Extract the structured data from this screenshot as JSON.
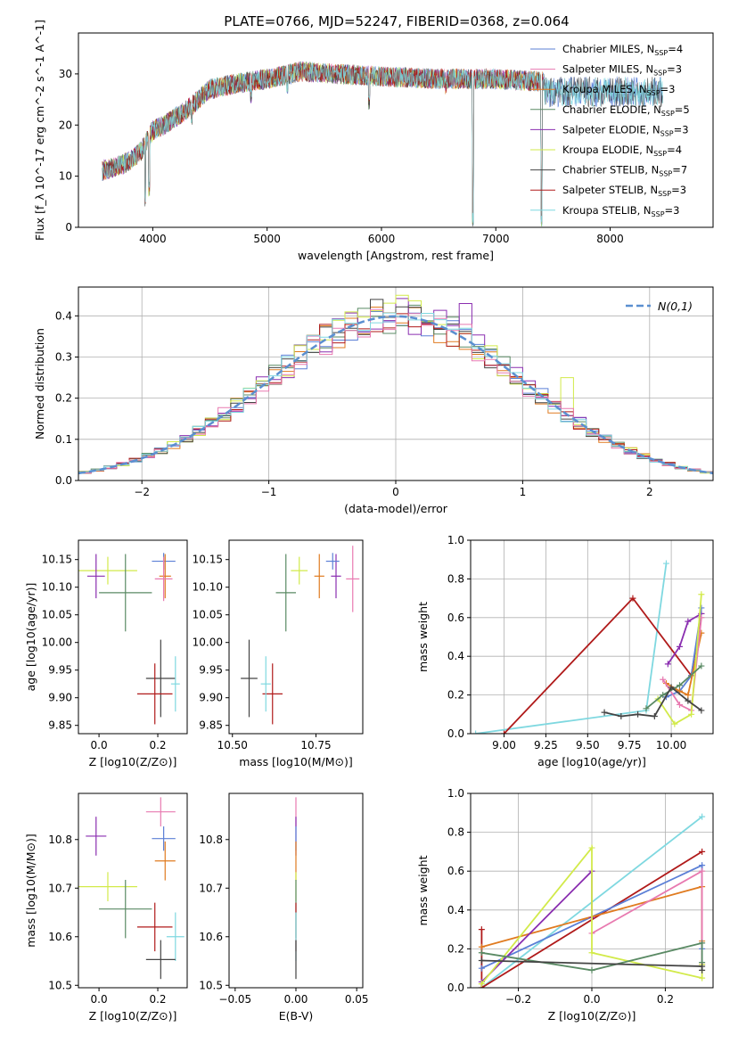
{
  "title": "PLATE=0766, MJD=52247, FIBERID=0368, z=0.064",
  "colors": {
    "blue": "#5b7fd6",
    "orange": "#e07b20",
    "green": "#5a8a64",
    "purple": "#8a2eb0",
    "yellowgreen": "#d2ea4a",
    "dark": "#444444",
    "red": "#b01a1a",
    "pink": "#e87ab0",
    "cyan": "#7fd8e0",
    "normal": "#5b8fd0",
    "grid": "#b0b0b0"
  },
  "chart_data": [
    {
      "id": "spectrum",
      "type": "line",
      "xlabel": "wavelength [Angstrom, rest frame]",
      "ylabel": "Flux [f_λ 10^-17 erg cm^-2 s^-1 A^-1]",
      "xlim": [
        3350,
        8900
      ],
      "ylim": [
        0,
        38
      ],
      "xticks": [
        4000,
        5000,
        6000,
        7000,
        8000
      ],
      "yticks": [
        0,
        10,
        20,
        30
      ],
      "grid": false,
      "legend_position": "upper-right",
      "series": [
        {
          "name": "Chabrier MILES, N_SSP=4",
          "color": "blue"
        },
        {
          "name": "Salpeter MILES, N_SSP=3",
          "color": "pink"
        },
        {
          "name": "Kroupa MILES, N_SSP=3",
          "color": "orange"
        },
        {
          "name": "Chabrier ELODIE, N_SSP=5",
          "color": "green"
        },
        {
          "name": "Salpeter ELODIE, N_SSP=3",
          "color": "purple"
        },
        {
          "name": "Kroupa ELODIE, N_SSP=4",
          "color": "yellowgreen"
        },
        {
          "name": "Chabrier STELIB, N_SSP=7",
          "color": "dark"
        },
        {
          "name": "Salpeter STELIB, N_SSP=3",
          "color": "red"
        },
        {
          "name": "Kroupa STELIB, N_SSP=3",
          "color": "cyan"
        }
      ],
      "continuum": {
        "x": [
          3550,
          3700,
          3800,
          3900,
          4000,
          4100,
          4300,
          4500,
          4700,
          5000,
          5300,
          5600,
          6000,
          6500,
          7000,
          7400
        ],
        "y": [
          11,
          12,
          13,
          15,
          19,
          20,
          23,
          27,
          28,
          29,
          30.5,
          30,
          29.5,
          29,
          29,
          28.5
        ]
      },
      "absorption": [
        {
          "x": 3934,
          "y": 4
        },
        {
          "x": 3969,
          "y": 6
        },
        {
          "x": 4340,
          "y": 20
        },
        {
          "x": 4861,
          "y": 24
        },
        {
          "x": 5175,
          "y": 26
        },
        {
          "x": 5893,
          "y": 23
        },
        {
          "x": 6563,
          "y": 26
        },
        {
          "x": 6800,
          "y": 0
        },
        {
          "x": 7400,
          "y": 0
        }
      ]
    },
    {
      "id": "residual-hist",
      "type": "histogram",
      "xlabel": "(data-model)/error",
      "ylabel": "Normed distribution",
      "xlim": [
        -2.5,
        2.5
      ],
      "ylim": [
        0,
        0.47
      ],
      "xticks": [
        -2,
        -1,
        0,
        1,
        2
      ],
      "yticks": [
        0.0,
        0.1,
        0.2,
        0.3,
        0.4
      ],
      "grid": true,
      "bin_width": 0.1,
      "legend": [
        {
          "name": "N(0,1)",
          "color": "normal"
        }
      ],
      "legend_position": "upper-right",
      "peak_values": [
        {
          "x": -0.45,
          "y": 0.37,
          "color": "pink"
        },
        {
          "x": -0.15,
          "y": 0.44,
          "color": "dark"
        },
        {
          "x": 0.05,
          "y": 0.45,
          "color": "yellowgreen"
        },
        {
          "x": 0.15,
          "y": 0.39,
          "color": "cyan"
        },
        {
          "x": 0.55,
          "y": 0.43,
          "color": "purple"
        },
        {
          "x": 1.35,
          "y": 0.25,
          "color": "yellowgreen"
        },
        {
          "x": -0.85,
          "y": 0.25,
          "color": "purple"
        }
      ]
    },
    {
      "id": "age-vs-Z",
      "type": "errorbar",
      "xlabel": "Z [log10(Z/Z⊙)]",
      "ylabel": "age  [log10(age/yr)]",
      "xlim": [
        -0.07,
        0.3
      ],
      "ylim": [
        9.835,
        10.185
      ],
      "xticks": [
        0.0,
        0.2
      ],
      "yticks": [
        9.85,
        9.9,
        9.95,
        10.0,
        10.05,
        10.1,
        10.15
      ],
      "points": [
        {
          "color": "yellowgreen",
          "x": 0.03,
          "y": 10.13,
          "xerr": 0.1,
          "yerr": 0.025
        },
        {
          "color": "purple",
          "x": -0.01,
          "y": 10.12,
          "xerr": 0.03,
          "yerr": 0.04
        },
        {
          "color": "green",
          "x": 0.09,
          "y": 10.09,
          "xerr": 0.09,
          "yerr": 0.07
        },
        {
          "color": "blue",
          "x": 0.22,
          "y": 10.147,
          "xerr": 0.04,
          "yerr": 0.015
        },
        {
          "color": "orange",
          "x": 0.225,
          "y": 10.12,
          "xerr": 0.02,
          "yerr": 0.04
        },
        {
          "color": "pink",
          "x": 0.22,
          "y": 10.115,
          "xerr": 0.03,
          "yerr": 0.04
        },
        {
          "color": "dark",
          "x": 0.21,
          "y": 9.935,
          "xerr": 0.05,
          "yerr": 0.07
        },
        {
          "color": "red",
          "x": 0.19,
          "y": 9.907,
          "xerr": 0.06,
          "yerr": 0.055
        },
        {
          "color": "cyan",
          "x": 0.26,
          "y": 9.925,
          "xerr": 0.015,
          "yerr": 0.05
        }
      ]
    },
    {
      "id": "age-vs-mass",
      "type": "errorbar",
      "xlabel": "mass [log10(M/M⊙)]",
      "ylabel": "",
      "xlim": [
        10.49,
        10.89
      ],
      "ylim": [
        9.835,
        10.185
      ],
      "xticks": [
        10.5,
        10.75
      ],
      "yticks": [
        9.85,
        9.9,
        9.95,
        10.0,
        10.05,
        10.1,
        10.15
      ],
      "points": [
        {
          "color": "yellowgreen",
          "x": 10.7,
          "y": 10.13,
          "xerr": 0.025,
          "yerr": 0.025
        },
        {
          "color": "purple",
          "x": 10.81,
          "y": 10.12,
          "xerr": 0.015,
          "yerr": 0.04
        },
        {
          "color": "green",
          "x": 10.66,
          "y": 10.09,
          "xerr": 0.03,
          "yerr": 0.07
        },
        {
          "color": "blue",
          "x": 10.8,
          "y": 10.147,
          "xerr": 0.02,
          "yerr": 0.015
        },
        {
          "color": "orange",
          "x": 10.76,
          "y": 10.12,
          "xerr": 0.015,
          "yerr": 0.04
        },
        {
          "color": "pink",
          "x": 10.86,
          "y": 10.115,
          "xerr": 0.02,
          "yerr": 0.06
        },
        {
          "color": "dark",
          "x": 10.55,
          "y": 9.935,
          "xerr": 0.025,
          "yerr": 0.07
        },
        {
          "color": "red",
          "x": 10.62,
          "y": 9.907,
          "xerr": 0.03,
          "yerr": 0.055
        },
        {
          "color": "cyan",
          "x": 10.6,
          "y": 9.925,
          "xerr": 0.015,
          "yerr": 0.05
        }
      ]
    },
    {
      "id": "mass-weight-vs-age",
      "type": "line",
      "xlabel": "age  [log10(age/yr)]",
      "ylabel": "mass weight",
      "xlim": [
        8.8,
        10.25
      ],
      "ylim": [
        0,
        1.0
      ],
      "xticks": [
        9.0,
        9.25,
        9.5,
        9.75,
        10.0
      ],
      "yticks": [
        0.0,
        0.2,
        0.4,
        0.6,
        0.8,
        1.0
      ],
      "grid": true,
      "series": [
        {
          "color": "cyan",
          "x": [
            8.83,
            9.85,
            9.97
          ],
          "y": [
            0.0,
            0.12,
            0.88
          ]
        },
        {
          "color": "red",
          "x": [
            9.0,
            9.77,
            10.12,
            10.18
          ],
          "y": [
            0.0,
            0.7,
            0.3,
            0.62
          ]
        },
        {
          "color": "purple",
          "x": [
            9.98,
            10.05,
            10.1,
            10.18
          ],
          "y": [
            0.36,
            0.45,
            0.58,
            0.62
          ]
        },
        {
          "color": "blue",
          "x": [
            9.97,
            10.05,
            10.12,
            10.18
          ],
          "y": [
            0.19,
            0.22,
            0.3,
            0.65
          ]
        },
        {
          "color": "orange",
          "x": [
            9.97,
            10.05,
            10.1,
            10.18
          ],
          "y": [
            0.26,
            0.22,
            0.2,
            0.52
          ]
        },
        {
          "color": "pink",
          "x": [
            9.95,
            10.05,
            10.12,
            10.18
          ],
          "y": [
            0.28,
            0.15,
            0.12,
            0.6
          ]
        },
        {
          "color": "yellowgreen",
          "x": [
            9.92,
            10.02,
            10.12,
            10.18
          ],
          "y": [
            0.18,
            0.05,
            0.1,
            0.72
          ]
        },
        {
          "color": "green",
          "x": [
            9.85,
            9.95,
            10.05,
            10.18
          ],
          "y": [
            0.13,
            0.2,
            0.25,
            0.35
          ]
        },
        {
          "color": "dark",
          "x": [
            9.6,
            9.7,
            9.8,
            9.9,
            10.0,
            10.1,
            10.18
          ],
          "y": [
            0.11,
            0.09,
            0.1,
            0.09,
            0.24,
            0.17,
            0.12
          ]
        }
      ]
    },
    {
      "id": "mass-vs-Z",
      "type": "errorbar",
      "xlabel": "Z [log10(Z/Z⊙)]",
      "ylabel": "mass [log10(M/M⊙)]",
      "xlim": [
        -0.07,
        0.3
      ],
      "ylim": [
        10.495,
        10.895
      ],
      "xticks": [
        0.0,
        0.2
      ],
      "yticks": [
        10.5,
        10.6,
        10.7,
        10.8
      ],
      "points": [
        {
          "color": "pink",
          "x": 0.21,
          "y": 10.857,
          "xerr": 0.05,
          "yerr": 0.03
        },
        {
          "color": "purple",
          "x": -0.01,
          "y": 10.807,
          "xerr": 0.035,
          "yerr": 0.04
        },
        {
          "color": "blue",
          "x": 0.22,
          "y": 10.802,
          "xerr": 0.04,
          "yerr": 0.025
        },
        {
          "color": "orange",
          "x": 0.225,
          "y": 10.756,
          "xerr": 0.035,
          "yerr": 0.04
        },
        {
          "color": "yellowgreen",
          "x": 0.03,
          "y": 10.703,
          "xerr": 0.1,
          "yerr": 0.03
        },
        {
          "color": "green",
          "x": 0.09,
          "y": 10.657,
          "xerr": 0.09,
          "yerr": 0.06
        },
        {
          "color": "red",
          "x": 0.19,
          "y": 10.62,
          "xerr": 0.06,
          "yerr": 0.05
        },
        {
          "color": "cyan",
          "x": 0.26,
          "y": 10.6,
          "xerr": 0.03,
          "yerr": 0.05
        },
        {
          "color": "dark",
          "x": 0.21,
          "y": 10.553,
          "xerr": 0.05,
          "yerr": 0.04
        }
      ]
    },
    {
      "id": "mass-vs-EBV",
      "type": "errorbar",
      "xlabel": "E(B-V)",
      "ylabel": "",
      "xlim": [
        -0.055,
        0.055
      ],
      "ylim": [
        10.495,
        10.895
      ],
      "xticks": [
        -0.05,
        0.0,
        0.05
      ],
      "yticks": [
        10.5,
        10.6,
        10.7,
        10.8
      ],
      "points": [
        {
          "color": "pink",
          "x": 0.0,
          "y": 10.857,
          "xerr": 0,
          "yerr": 0.03
        },
        {
          "color": "purple",
          "x": 0.0,
          "y": 10.807,
          "xerr": 0,
          "yerr": 0.04
        },
        {
          "color": "blue",
          "x": 0.0,
          "y": 10.802,
          "xerr": 0,
          "yerr": 0.025
        },
        {
          "color": "orange",
          "x": 0.0,
          "y": 10.756,
          "xerr": 0,
          "yerr": 0.04
        },
        {
          "color": "yellowgreen",
          "x": 0.0,
          "y": 10.703,
          "xerr": 0,
          "yerr": 0.03
        },
        {
          "color": "green",
          "x": 0.0,
          "y": 10.657,
          "xerr": 0,
          "yerr": 0.06
        },
        {
          "color": "red",
          "x": 0.0,
          "y": 10.62,
          "xerr": 0,
          "yerr": 0.05
        },
        {
          "color": "cyan",
          "x": 0.0,
          "y": 10.6,
          "xerr": 0,
          "yerr": 0.05
        },
        {
          "color": "dark",
          "x": 0.0,
          "y": 10.553,
          "xerr": 0,
          "yerr": 0.04
        }
      ]
    },
    {
      "id": "mass-weight-vs-Z",
      "type": "line",
      "xlabel": "Z [log10(Z/Z⊙)]",
      "ylabel": "mass weight",
      "xlim": [
        -0.33,
        0.33
      ],
      "ylim": [
        0,
        1.0
      ],
      "xticks": [
        -0.2,
        0.0,
        0.2
      ],
      "yticks": [
        0.0,
        0.2,
        0.4,
        0.6,
        0.8,
        1.0
      ],
      "grid": true,
      "series": [
        {
          "color": "cyan",
          "x": [
            -0.3,
            0.3
          ],
          "y": [
            0.0,
            0.88
          ]
        },
        {
          "color": "red",
          "x": [
            -0.3,
            -0.3,
            0.3
          ],
          "y": [
            0.3,
            0.0,
            0.7
          ]
        },
        {
          "color": "blue",
          "x": [
            -0.3,
            0.3,
            0.3
          ],
          "y": [
            0.1,
            0.63,
            0.2
          ]
        },
        {
          "color": "orange",
          "x": [
            -0.3,
            0.3,
            0.3
          ],
          "y": [
            0.21,
            0.52,
            0.24
          ]
        },
        {
          "color": "pink",
          "x": [
            0.0,
            0.3,
            0.3
          ],
          "y": [
            0.28,
            0.6,
            0.12
          ]
        },
        {
          "color": "purple",
          "x": [
            -0.3,
            0.0,
            0.0
          ],
          "y": [
            0.03,
            0.6,
            0.36
          ]
        },
        {
          "color": "yellowgreen",
          "x": [
            -0.3,
            0.0,
            0.0,
            0.3,
            0.3
          ],
          "y": [
            0.02,
            0.72,
            0.18,
            0.05,
            0.12
          ]
        },
        {
          "color": "green",
          "x": [
            -0.3,
            0.0,
            0.3,
            0.3
          ],
          "y": [
            0.18,
            0.09,
            0.23,
            0.13
          ]
        },
        {
          "color": "dark",
          "x": [
            -0.3,
            0.3,
            0.3
          ],
          "y": [
            0.14,
            0.11,
            0.09
          ]
        }
      ]
    }
  ]
}
